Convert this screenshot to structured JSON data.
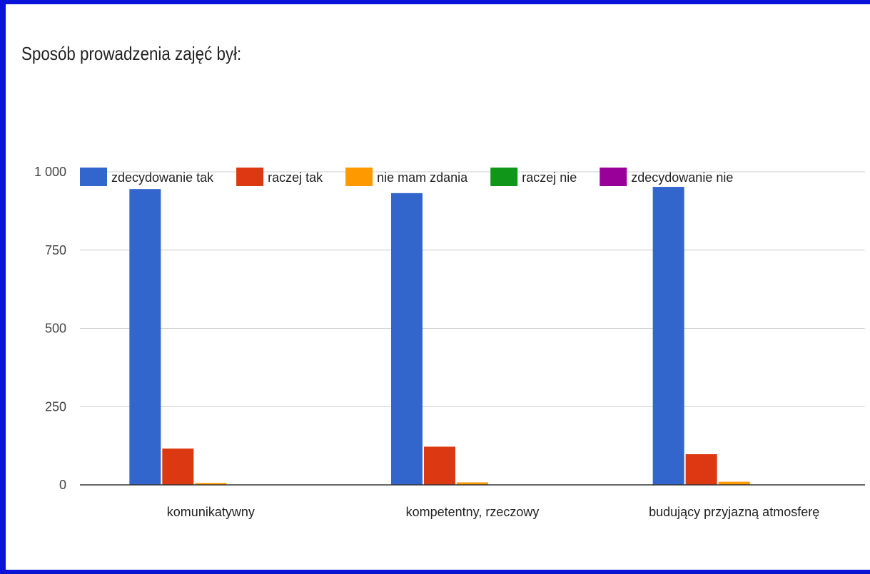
{
  "chart_data": {
    "type": "bar",
    "title": "Sposób prowadzenia zajęć był:",
    "xlabel": "",
    "ylabel": "",
    "ylim": [
      0,
      1000
    ],
    "yticks": [
      0,
      250,
      500,
      750,
      1000
    ],
    "ytick_labels": [
      "0",
      "250",
      "500",
      "750",
      "1 000"
    ],
    "grid": true,
    "legend_position": "top",
    "categories": [
      "komunikatywny",
      "kompetentny, rzeczowy",
      "budujący przyjazną atmosferę"
    ],
    "series": [
      {
        "name": "zdecydowanie tak",
        "color": "#3366cc",
        "values": [
          945,
          932,
          952
        ]
      },
      {
        "name": "raczej tak",
        "color": "#dc3912",
        "values": [
          116,
          122,
          98
        ]
      },
      {
        "name": "nie mam zdania",
        "color": "#ff9900",
        "values": [
          6,
          8,
          10
        ]
      },
      {
        "name": "raczej nie",
        "color": "#109618",
        "values": [
          1,
          1,
          1
        ]
      },
      {
        "name": "zdecydowanie nie",
        "color": "#990099",
        "values": [
          0,
          0,
          0
        ]
      }
    ]
  }
}
